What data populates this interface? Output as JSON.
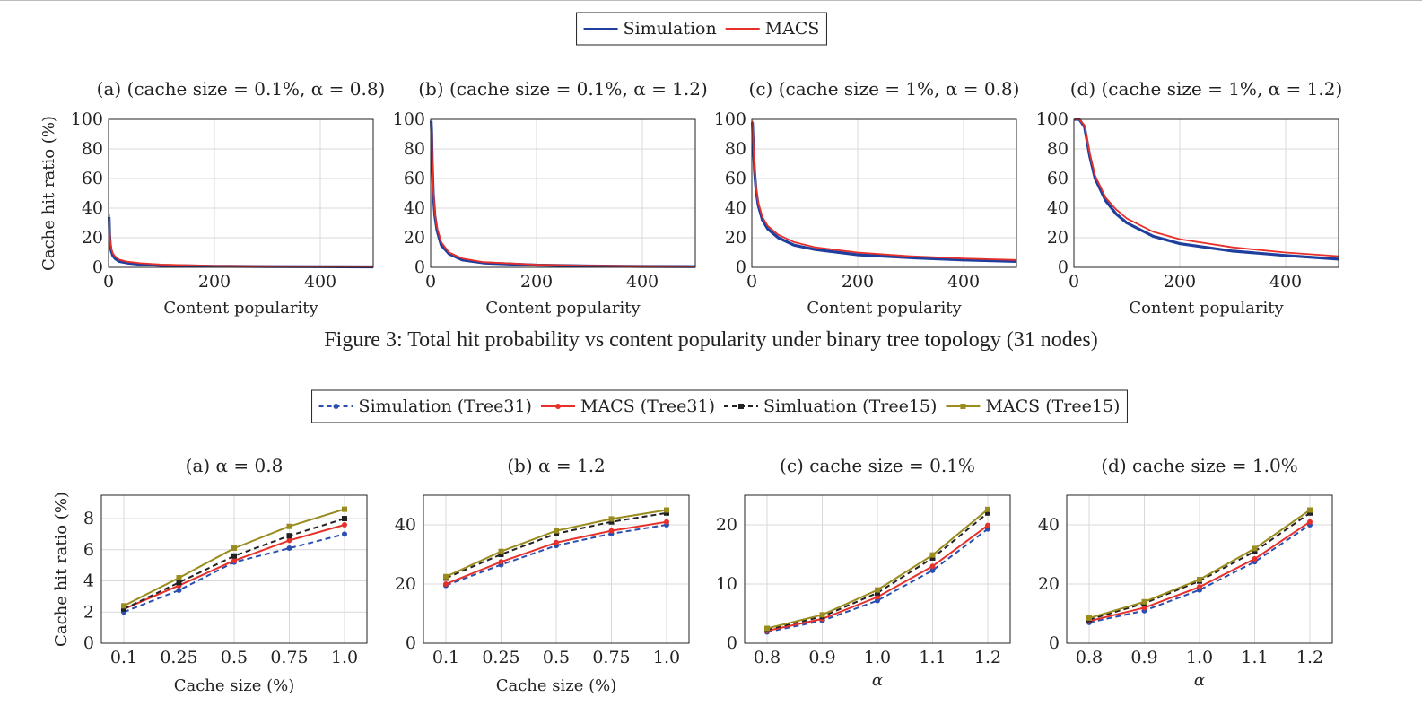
{
  "figure3": {
    "caption": "Figure 3: Total hit probability vs content popularity under binary tree topology (31 nodes)",
    "legend": [
      {
        "label": "Simulation",
        "color": "#1f3f9f"
      },
      {
        "label": "MACS",
        "color": "#e8302a"
      }
    ]
  },
  "figure4": {
    "legend": [
      {
        "label": "Simulation (Tree31)",
        "color": "#2a4fb0",
        "dashed": true,
        "marker": "circle"
      },
      {
        "label": "MACS (Tree31)",
        "color": "#e8302a",
        "dashed": false,
        "marker": "circle"
      },
      {
        "label": "Simluation (Tree15)",
        "color": "#222222",
        "dashed": true,
        "marker": "square"
      },
      {
        "label": "MACS (Tree15)",
        "color": "#9a8c1e",
        "dashed": false,
        "marker": "square"
      }
    ]
  },
  "chart_data": [
    {
      "type": "line",
      "group": "fig3",
      "title": "(a) (cache size = 0.1%, α = 0.8)",
      "xlabel": "Content popularity",
      "ylabel": "Cache hit ratio (%)",
      "xlim": [
        0,
        500
      ],
      "ylim": [
        0,
        100
      ],
      "xticks": [
        "0",
        "200",
        "400"
      ],
      "yticks": [
        "0",
        "20",
        "40",
        "60",
        "80",
        "100"
      ],
      "series": [
        {
          "name": "Simulation",
          "x": [
            1,
            2,
            3,
            5,
            8,
            12,
            20,
            35,
            60,
            100,
            200,
            300,
            400,
            500
          ],
          "values": [
            34,
            22,
            16,
            11,
            8,
            6,
            4,
            3,
            2,
            1.3,
            0.7,
            0.5,
            0.4,
            0.3
          ]
        },
        {
          "name": "MACS",
          "x": [
            1,
            2,
            3,
            5,
            8,
            12,
            20,
            35,
            60,
            100,
            200,
            300,
            400,
            500
          ],
          "values": [
            36,
            24,
            18,
            13,
            9.5,
            7.5,
            5.2,
            3.8,
            2.8,
            1.9,
            1.0,
            0.7,
            0.5,
            0.4
          ]
        }
      ]
    },
    {
      "type": "line",
      "group": "fig3",
      "title": "(b) (cache size = 0.1%, α = 1.2)",
      "xlabel": "Content popularity",
      "ylabel": "",
      "xlim": [
        0,
        500
      ],
      "ylim": [
        0,
        100
      ],
      "xticks": [
        "0",
        "200",
        "400"
      ],
      "yticks": [
        "0",
        "20",
        "40",
        "60",
        "80",
        "100"
      ],
      "series": [
        {
          "name": "Simulation",
          "x": [
            1,
            2,
            3,
            5,
            8,
            12,
            20,
            35,
            60,
            100,
            200,
            300,
            400,
            500
          ],
          "values": [
            99,
            90,
            70,
            50,
            35,
            25,
            15,
            9,
            5,
            3,
            1.5,
            0.9,
            0.6,
            0.5
          ]
        },
        {
          "name": "MACS",
          "x": [
            1,
            2,
            3,
            5,
            8,
            12,
            20,
            35,
            60,
            100,
            200,
            300,
            400,
            500
          ],
          "values": [
            99,
            92,
            73,
            53,
            37,
            27,
            17,
            10,
            6,
            3.5,
            1.8,
            1.1,
            0.8,
            0.6
          ]
        }
      ]
    },
    {
      "type": "line",
      "group": "fig3",
      "title": "(c) (cache size = 1%, α = 0.8)",
      "xlabel": "Content popularity",
      "ylabel": "",
      "xlim": [
        0,
        500
      ],
      "ylim": [
        0,
        100
      ],
      "xticks": [
        "0",
        "200",
        "400"
      ],
      "yticks": [
        "0",
        "20",
        "40",
        "60",
        "80",
        "100"
      ],
      "series": [
        {
          "name": "Simulation",
          "x": [
            1,
            3,
            5,
            8,
            12,
            20,
            30,
            50,
            80,
            120,
            200,
            300,
            400,
            500
          ],
          "values": [
            98,
            80,
            65,
            52,
            42,
            32,
            26,
            20,
            15,
            12,
            8.5,
            6.5,
            5,
            4
          ]
        },
        {
          "name": "MACS",
          "x": [
            1,
            3,
            5,
            8,
            12,
            20,
            30,
            50,
            80,
            120,
            200,
            300,
            400,
            500
          ],
          "values": [
            99,
            82,
            67,
            54,
            44,
            34,
            28,
            22,
            17,
            13.5,
            10,
            7.5,
            6,
            5
          ]
        }
      ]
    },
    {
      "type": "line",
      "group": "fig3",
      "title": "(d) (cache size = 1%, α = 1.2)",
      "xlabel": "Content popularity",
      "ylabel": "",
      "xlim": [
        0,
        500
      ],
      "ylim": [
        0,
        100
      ],
      "xticks": [
        "0",
        "200",
        "400"
      ],
      "yticks": [
        "0",
        "20",
        "40",
        "60",
        "80",
        "100"
      ],
      "series": [
        {
          "name": "Simulation",
          "x": [
            1,
            10,
            20,
            30,
            40,
            60,
            80,
            100,
            150,
            200,
            300,
            400,
            500
          ],
          "values": [
            100,
            100,
            95,
            75,
            60,
            45,
            36,
            30,
            21,
            16,
            11,
            8,
            5.5
          ]
        },
        {
          "name": "MACS",
          "x": [
            1,
            10,
            20,
            30,
            40,
            60,
            80,
            100,
            150,
            200,
            300,
            400,
            500
          ],
          "values": [
            100,
            100,
            96,
            77,
            62,
            47,
            39,
            33,
            24,
            19,
            13.5,
            10,
            7.5
          ]
        }
      ]
    },
    {
      "type": "line",
      "group": "fig4",
      "title": "(a) α = 0.8",
      "xlabel": "Cache size (%)",
      "ylabel": "Cache hit ratio (%)",
      "categories": [
        "0.1",
        "0.25",
        "0.5",
        "0.75",
        "1.0"
      ],
      "ylim": [
        0,
        9.5
      ],
      "yticks": [
        "0",
        "2",
        "4",
        "6",
        "8"
      ],
      "ytick_values": [
        0,
        2,
        4,
        6,
        8
      ],
      "series": [
        {
          "name": "Simulation (Tree31)",
          "values": [
            2.0,
            3.4,
            5.2,
            6.1,
            7.0
          ]
        },
        {
          "name": "MACS (Tree31)",
          "values": [
            2.2,
            3.7,
            5.3,
            6.6,
            7.6
          ]
        },
        {
          "name": "Simluation (Tree15)",
          "values": [
            2.2,
            3.9,
            5.6,
            6.9,
            8.0
          ]
        },
        {
          "name": "MACS (Tree15)",
          "values": [
            2.4,
            4.2,
            6.1,
            7.5,
            8.6
          ]
        }
      ]
    },
    {
      "type": "line",
      "group": "fig4",
      "title": "(b) α = 1.2",
      "xlabel": "Cache size (%)",
      "ylabel": "",
      "categories": [
        "0.1",
        "0.25",
        "0.5",
        "0.75",
        "1.0"
      ],
      "ylim": [
        0,
        50
      ],
      "yticks": [
        "0",
        "20",
        "40"
      ],
      "ytick_values": [
        0,
        20,
        40
      ],
      "series": [
        {
          "name": "Simulation (Tree31)",
          "values": [
            19.5,
            26.5,
            33,
            37,
            40
          ]
        },
        {
          "name": "MACS (Tree31)",
          "values": [
            20,
            27.5,
            34,
            38,
            41
          ]
        },
        {
          "name": "Simluation (Tree15)",
          "values": [
            22,
            30,
            37,
            41,
            44
          ]
        },
        {
          "name": "MACS (Tree15)",
          "values": [
            22.5,
            31,
            38,
            42,
            45
          ]
        }
      ]
    },
    {
      "type": "line",
      "group": "fig4",
      "title": "(c) cache size = 0.1%",
      "xlabel": "α",
      "ylabel": "",
      "categories": [
        "0.8",
        "0.9",
        "1.0",
        "1.1",
        "1.2"
      ],
      "ylim": [
        0,
        25
      ],
      "yticks": [
        "0",
        "10",
        "20"
      ],
      "ytick_values": [
        0,
        10,
        20
      ],
      "series": [
        {
          "name": "Simulation (Tree31)",
          "values": [
            1.9,
            3.8,
            7.2,
            12.3,
            19.3
          ]
        },
        {
          "name": "MACS (Tree31)",
          "values": [
            2.1,
            4.1,
            7.8,
            13.0,
            19.9
          ]
        },
        {
          "name": "Simluation (Tree15)",
          "values": [
            2.3,
            4.5,
            8.5,
            14.4,
            22.0
          ]
        },
        {
          "name": "MACS (Tree15)",
          "values": [
            2.5,
            4.8,
            9.0,
            14.9,
            22.6
          ]
        }
      ]
    },
    {
      "type": "line",
      "group": "fig4",
      "title": "(d) cache size = 1.0%",
      "xlabel": "α",
      "ylabel": "",
      "categories": [
        "0.8",
        "0.9",
        "1.0",
        "1.1",
        "1.2"
      ],
      "ylim": [
        0,
        50
      ],
      "yticks": [
        "0",
        "20",
        "40"
      ],
      "ytick_values": [
        0,
        20,
        40
      ],
      "series": [
        {
          "name": "Simulation (Tree31)",
          "values": [
            7,
            11,
            18,
            27.5,
            40
          ]
        },
        {
          "name": "MACS (Tree31)",
          "values": [
            7.5,
            12,
            19,
            28.5,
            41
          ]
        },
        {
          "name": "Simluation (Tree15)",
          "values": [
            8,
            13.5,
            21,
            31,
            44
          ]
        },
        {
          "name": "MACS (Tree15)",
          "values": [
            8.5,
            14,
            21.5,
            32,
            45
          ]
        }
      ]
    }
  ]
}
